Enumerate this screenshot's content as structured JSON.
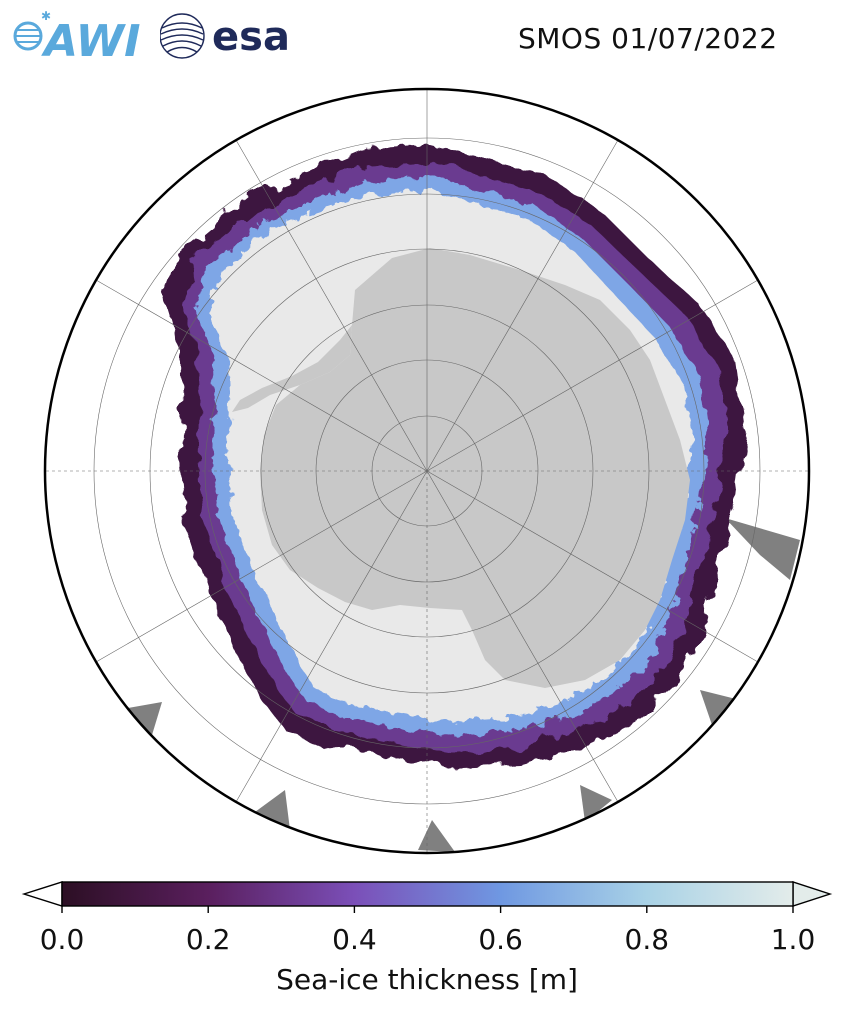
{
  "header": {
    "awi_logo_text": "AWI",
    "esa_logo_text": "esa",
    "title": "SMOS 01/07/2022"
  },
  "map": {
    "projection": "south-polar-stereographic",
    "region": "Antarctica / Southern Ocean",
    "colors": {
      "land": "#c8c8c8",
      "ice_shelf": "#e9e9e9",
      "ice_edge_thin": "#3b1537",
      "ice_mid": "#6b3a8c",
      "ice_thick": "#7aa8e0",
      "masked": "#808080",
      "ocean": "#ffffff"
    }
  },
  "colorbar": {
    "label": "Sea-ice thickness [m]",
    "min": 0.0,
    "max": 1.0,
    "ticks": [
      "0.0",
      "0.2",
      "0.4",
      "0.6",
      "0.8",
      "1.0"
    ],
    "stops": [
      "#2c0f24",
      "#5a1f5e",
      "#7b4fb8",
      "#6f98e2",
      "#a9d2e6",
      "#e3ecea"
    ],
    "extend": "both"
  }
}
